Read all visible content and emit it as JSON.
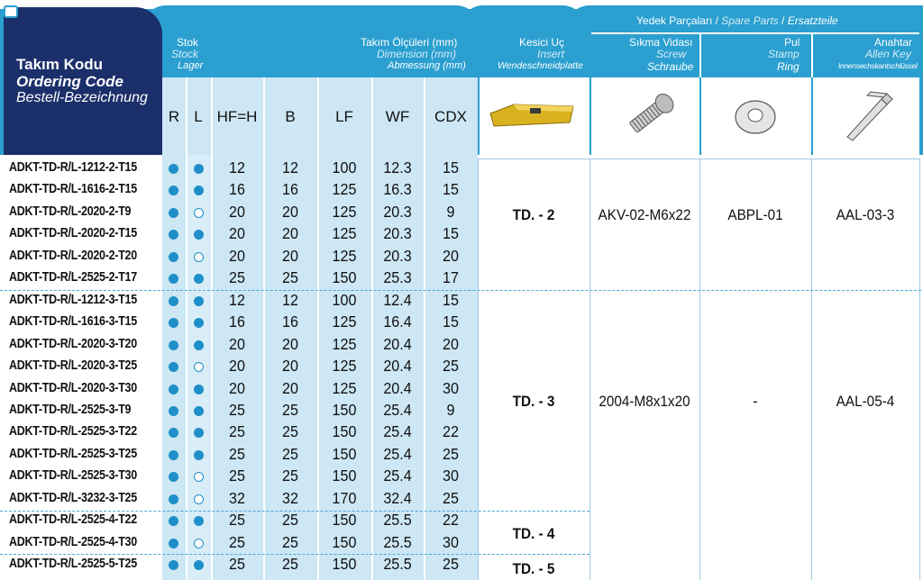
{
  "header": {
    "ordering": {
      "tr": "Takım Kodu",
      "en": "Ordering Code",
      "de": "Bestell-Bezeichnung"
    },
    "stock": {
      "tr": "Stok",
      "en": "Stock",
      "de": "Lager"
    },
    "dimension": {
      "tr": "Takım Ölçüleri (mm)",
      "en": "Dimension (mm)",
      "de": "Abmessung (mm)"
    },
    "insert": {
      "tr": "Kesici Uç",
      "en": "Insert",
      "de": "Wendeschneidplatte"
    },
    "spare": {
      "tr": "Yedek Parçaları /",
      "en": "Spare Parts",
      "sep": "/",
      "de": "Ersatzteile"
    },
    "screw": {
      "tr": "Sıkma Vidası",
      "en": "Screw",
      "de": "Schraube"
    },
    "ring": {
      "tr": "Pul",
      "en": "Stamp",
      "de": "Ring"
    },
    "key": {
      "tr": "Anahtar",
      "en": "Allen Key",
      "de": "Innensechskantschlüssel"
    },
    "columns": [
      "R",
      "L",
      "HF=H",
      "B",
      "LF",
      "WF",
      "CDX"
    ]
  },
  "colors": {
    "header_blue": "#2a9fd0",
    "navy": "#1b2f6b",
    "light_blue": "#cde7f4",
    "insert_gold": "#c9a01a"
  },
  "rows": [
    {
      "code": "ADKT-TD-R/L-1212-2-T15",
      "R": "full",
      "L": "full",
      "HF": "12",
      "B": "12",
      "LF": "100",
      "WF": "12.3",
      "CDX": "15"
    },
    {
      "code": "ADKT-TD-R/L-1616-2-T15",
      "R": "full",
      "L": "full",
      "HF": "16",
      "B": "16",
      "LF": "125",
      "WF": "16.3",
      "CDX": "15"
    },
    {
      "code": "ADKT-TD-R/L-2020-2-T9",
      "R": "full",
      "L": "empty",
      "HF": "20",
      "B": "20",
      "LF": "125",
      "WF": "20.3",
      "CDX": "9"
    },
    {
      "code": "ADKT-TD-R/L-2020-2-T15",
      "R": "full",
      "L": "full",
      "HF": "20",
      "B": "20",
      "LF": "125",
      "WF": "20.3",
      "CDX": "15"
    },
    {
      "code": "ADKT-TD-R/L-2020-2-T20",
      "R": "full",
      "L": "empty",
      "HF": "20",
      "B": "20",
      "LF": "125",
      "WF": "20.3",
      "CDX": "20"
    },
    {
      "code": "ADKT-TD-R/L-2525-2-T17",
      "R": "full",
      "L": "full",
      "HF": "25",
      "B": "25",
      "LF": "150",
      "WF": "25.3",
      "CDX": "17"
    },
    {
      "code": "ADKT-TD-R/L-1212-3-T15",
      "R": "full",
      "L": "full",
      "HF": "12",
      "B": "12",
      "LF": "100",
      "WF": "12.4",
      "CDX": "15"
    },
    {
      "code": "ADKT-TD-R/L-1616-3-T15",
      "R": "full",
      "L": "full",
      "HF": "16",
      "B": "16",
      "LF": "125",
      "WF": "16.4",
      "CDX": "15"
    },
    {
      "code": "ADKT-TD-R/L-2020-3-T20",
      "R": "full",
      "L": "full",
      "HF": "20",
      "B": "20",
      "LF": "125",
      "WF": "20.4",
      "CDX": "20"
    },
    {
      "code": "ADKT-TD-R/L-2020-3-T25",
      "R": "full",
      "L": "empty",
      "HF": "20",
      "B": "20",
      "LF": "125",
      "WF": "20.4",
      "CDX": "25"
    },
    {
      "code": "ADKT-TD-R/L-2020-3-T30",
      "R": "full",
      "L": "full",
      "HF": "20",
      "B": "20",
      "LF": "125",
      "WF": "20.4",
      "CDX": "30"
    },
    {
      "code": "ADKT-TD-R/L-2525-3-T9",
      "R": "full",
      "L": "full",
      "HF": "25",
      "B": "25",
      "LF": "150",
      "WF": "25.4",
      "CDX": "9"
    },
    {
      "code": "ADKT-TD-R/L-2525-3-T22",
      "R": "full",
      "L": "full",
      "HF": "25",
      "B": "25",
      "LF": "150",
      "WF": "25.4",
      "CDX": "22"
    },
    {
      "code": "ADKT-TD-R/L-2525-3-T25",
      "R": "full",
      "L": "full",
      "HF": "25",
      "B": "25",
      "LF": "150",
      "WF": "25.4",
      "CDX": "25"
    },
    {
      "code": "ADKT-TD-R/L-2525-3-T30",
      "R": "full",
      "L": "empty",
      "HF": "25",
      "B": "25",
      "LF": "150",
      "WF": "25.4",
      "CDX": "30"
    },
    {
      "code": "ADKT-TD-R/L-3232-3-T25",
      "R": "full",
      "L": "empty",
      "HF": "32",
      "B": "32",
      "LF": "170",
      "WF": "32.4",
      "CDX": "25"
    },
    {
      "code": "ADKT-TD-R/L-2525-4-T22",
      "R": "full",
      "L": "full",
      "HF": "25",
      "B": "25",
      "LF": "150",
      "WF": "25.5",
      "CDX": "22"
    },
    {
      "code": "ADKT-TD-R/L-2525-4-T30",
      "R": "full",
      "L": "empty",
      "HF": "25",
      "B": "25",
      "LF": "150",
      "WF": "25.5",
      "CDX": "30"
    },
    {
      "code": "ADKT-TD-R/L-2525-5-T25",
      "R": "full",
      "L": "full",
      "HF": "25",
      "B": "25",
      "LF": "150",
      "WF": "25.5",
      "CDX": "25"
    }
  ],
  "groups": {
    "g2": {
      "insert": "TD. - 2",
      "screw": "AKV-02-M6x22",
      "ring": "ABPL-01",
      "key": "AAL-03-3"
    },
    "g3": {
      "insert": "TD. - 3",
      "screw": "2004-M8x1x20",
      "ring": "-",
      "key": "AAL-05-4"
    },
    "g4": {
      "insert": "TD. - 4"
    },
    "g5": {
      "insert": "TD. - 5"
    }
  }
}
